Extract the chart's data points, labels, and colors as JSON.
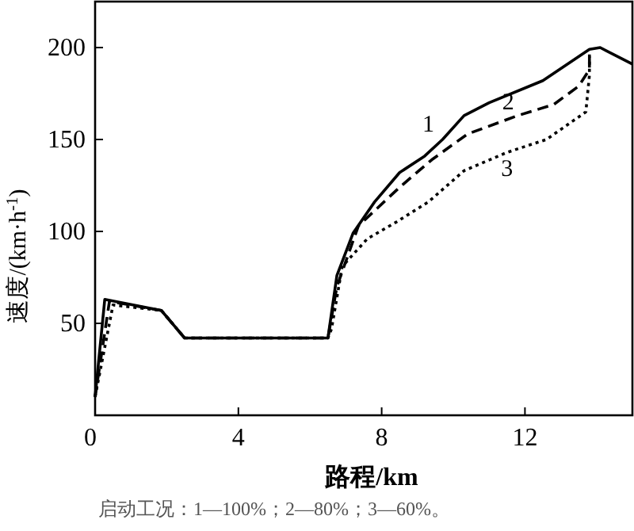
{
  "chart_data": {
    "type": "line",
    "xlabel": "路程/km",
    "ylabel": "速度/(km·h$^{-1}$)",
    "annotations": [
      "启动工况：1—100%；2—80%；3—60%。"
    ],
    "xlim": [
      0,
      15
    ],
    "ylim": [
      0,
      225
    ],
    "xticks": [
      0,
      4,
      8,
      12
    ],
    "yticks": [
      50,
      100,
      150,
      200
    ],
    "grid": false,
    "marker": "none",
    "series": [
      {
        "name": "1",
        "color": "#000000",
        "line_style": "solid",
        "x": [
          0,
          0.27,
          1.85,
          2.5,
          6.5,
          6.75,
          7.2,
          7.8,
          8.5,
          9.2,
          9.7,
          10.3,
          11.0,
          12.5,
          13.8,
          14.1,
          15
        ],
        "values": [
          10,
          63,
          57,
          42,
          42,
          76,
          99,
          116,
          132,
          141,
          150,
          163,
          170,
          182,
          199,
          200,
          191
        ]
      },
      {
        "name": "2",
        "color": "#000000",
        "line_style": "dashed",
        "x": [
          0,
          0.4,
          1.85,
          2.5,
          6.5,
          6.75,
          7.35,
          8.5,
          9.4,
          10.4,
          11.8,
          12.8,
          13.5,
          13.8,
          13.8
        ],
        "values": [
          10,
          62,
          57,
          42,
          42,
          70,
          103,
          124,
          139,
          153,
          163,
          169,
          179,
          188,
          197
        ]
      },
      {
        "name": "3",
        "color": "#000000",
        "line_style": "dotted",
        "x": [
          0,
          0.5,
          1.85,
          2.5,
          6.5,
          6.6,
          6.9,
          7.6,
          8.4,
          9.3,
          10.3,
          11.5,
          12.6,
          13.7,
          13.8,
          13.8
        ],
        "values": [
          10,
          60,
          57,
          42,
          42,
          47,
          81,
          96,
          105,
          116,
          133,
          143,
          150,
          165,
          185,
          197
        ]
      }
    ]
  }
}
